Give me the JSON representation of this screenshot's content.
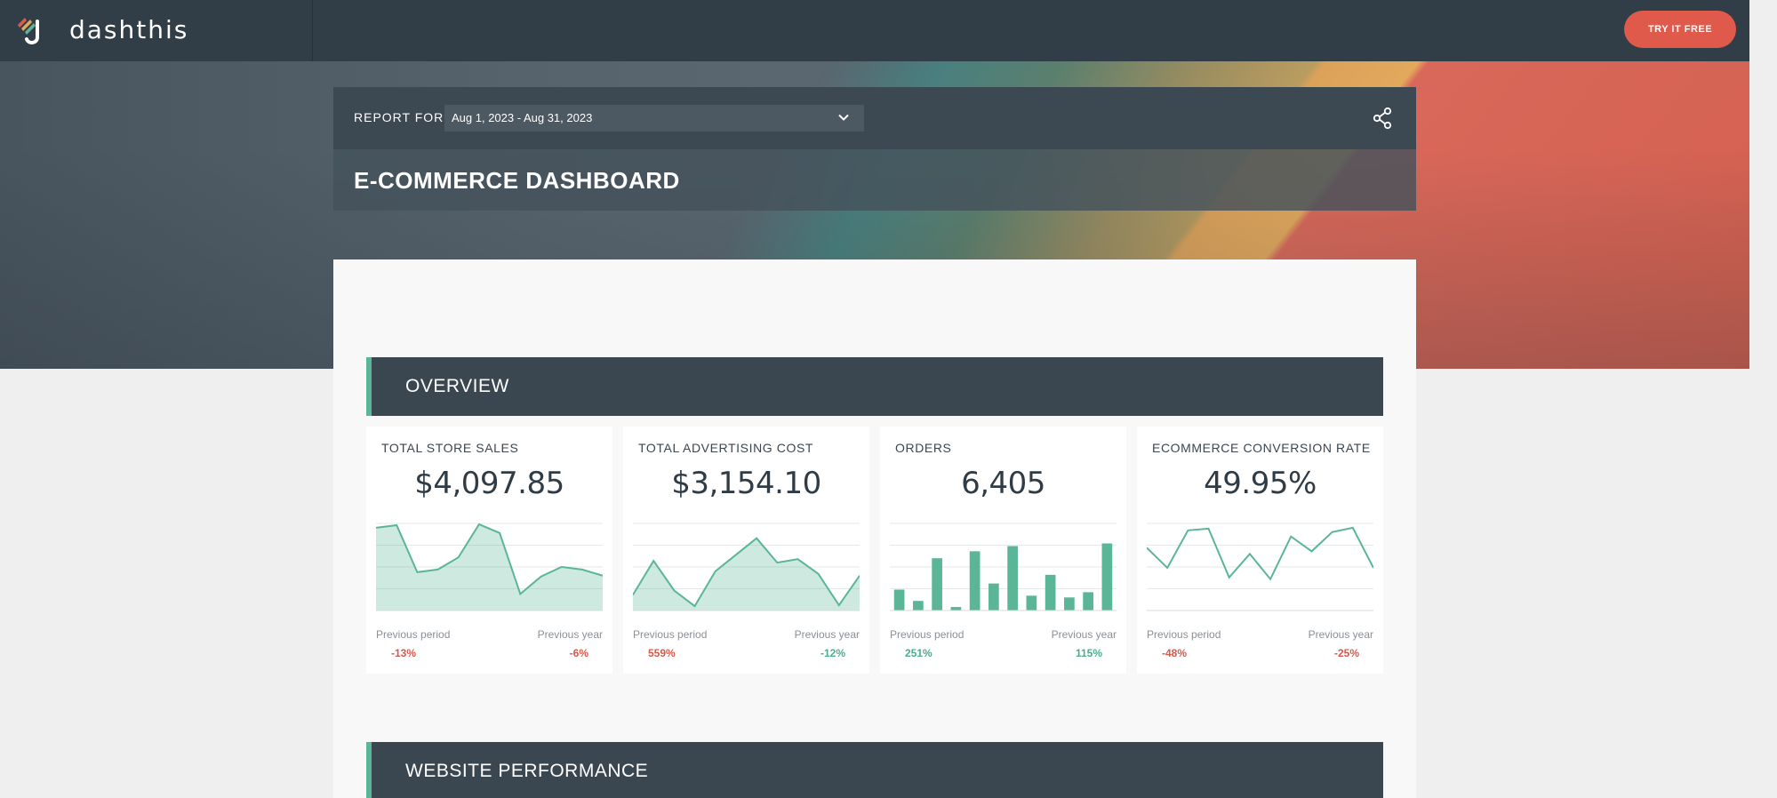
{
  "brand": {
    "name": "dashthis"
  },
  "topbar": {
    "cta_label": "TRY IT FREE"
  },
  "report": {
    "report_for_label": "REPORT FOR",
    "date_range": "Aug 1, 2023 - Aug 31, 2023",
    "title": "E-COMMERCE DASHBOARD"
  },
  "icons": {
    "logo": "dashthis-logo-icon",
    "dropdown": "chevron-down-icon",
    "share": "share-icon"
  },
  "colors": {
    "accent_green": "#5bb597",
    "cta_red": "#e05a4c",
    "negative": "#d9584a",
    "positive": "#4bae8c",
    "header_dark": "#313e48"
  },
  "sections": [
    {
      "title": "OVERVIEW"
    },
    {
      "title": "WEBSITE PERFORMANCE"
    }
  ],
  "kpis": [
    {
      "title": "TOTAL STORE SALES",
      "value": "$4,097.85",
      "prev_period_label": "Previous period",
      "prev_year_label": "Previous year",
      "prev_period_change": "-13%",
      "prev_year_change": "-6%"
    },
    {
      "title": "TOTAL ADVERTISING COST",
      "value": "$3,154.10",
      "prev_period_label": "Previous period",
      "prev_year_label": "Previous year",
      "prev_period_change": "559%",
      "prev_year_change": "-12%"
    },
    {
      "title": "ORDERS",
      "value": "6,405",
      "prev_period_label": "Previous period",
      "prev_year_label": "Previous year",
      "prev_period_change": "251%",
      "prev_year_change": "115%"
    },
    {
      "title": "ECOMMERCE CONVERSION RATE",
      "value": "49.95%",
      "prev_period_label": "Previous period",
      "prev_year_label": "Previous year",
      "prev_period_change": "-48%",
      "prev_year_change": "-25%"
    }
  ],
  "chart_data": [
    {
      "type": "area",
      "title": "",
      "values": [
        95,
        98,
        44,
        47,
        61,
        99,
        89,
        19,
        39,
        50,
        47,
        40
      ],
      "ylim": [
        0,
        100
      ]
    },
    {
      "type": "area",
      "title": "",
      "values": [
        18,
        57,
        23,
        5,
        45,
        64,
        83,
        55,
        59,
        42,
        6,
        40
      ],
      "ylim": [
        0,
        100
      ]
    },
    {
      "type": "bar",
      "title": "",
      "values": [
        24,
        11,
        60,
        4,
        68,
        31,
        74,
        17,
        41,
        15,
        21,
        77
      ],
      "ylim": [
        0,
        100
      ]
    },
    {
      "type": "line",
      "title": "",
      "values": [
        72,
        49,
        92,
        94,
        38,
        65,
        36,
        85,
        68,
        90,
        95,
        49
      ],
      "ylim": [
        0,
        100
      ]
    }
  ]
}
